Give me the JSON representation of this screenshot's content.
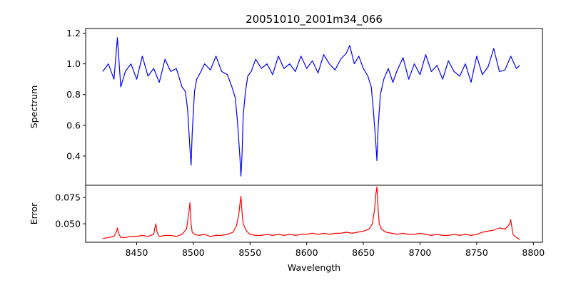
{
  "chart_data": [
    {
      "type": "line",
      "title": "20051010_2001m34_066",
      "xlabel": "",
      "ylabel": "Spectrum",
      "xlim": [
        8405,
        8808
      ],
      "ylim": [
        0.21,
        1.23
      ],
      "yticks": [
        0.4,
        0.6,
        0.8,
        1.0,
        1.2
      ],
      "ytick_labels": [
        "0.4",
        "0.6",
        "0.8",
        "1.0",
        "1.2"
      ],
      "grid": false,
      "color": "#0000ff",
      "series": [
        {
          "x": [
            8420,
            8425,
            8430,
            8433,
            8436,
            8440,
            8445,
            8450,
            8455,
            8460,
            8465,
            8470,
            8475,
            8480,
            8485,
            8490,
            8493,
            8495,
            8497,
            8498,
            8499,
            8501,
            8503,
            8506,
            8510,
            8515,
            8520,
            8525,
            8530,
            8534,
            8537,
            8539,
            8541,
            8542,
            8543,
            8544,
            8546,
            8548,
            8551,
            8555,
            8560,
            8565,
            8570,
            8575,
            8580,
            8585,
            8590,
            8595,
            8600,
            8605,
            8610,
            8615,
            8620,
            8625,
            8630,
            8635,
            8638,
            8642,
            8646,
            8650,
            8654,
            8657,
            8659,
            8661,
            8662,
            8663,
            8665,
            8668,
            8672,
            8676,
            8680,
            8685,
            8690,
            8695,
            8700,
            8705,
            8710,
            8715,
            8720,
            8725,
            8730,
            8735,
            8740,
            8745,
            8750,
            8755,
            8760,
            8765,
            8770,
            8775,
            8780,
            8785,
            8788
          ],
          "y": [
            0.95,
            1.0,
            0.9,
            1.17,
            0.85,
            0.95,
            1.0,
            0.9,
            1.05,
            0.92,
            0.97,
            0.88,
            1.03,
            0.95,
            0.97,
            0.85,
            0.82,
            0.7,
            0.45,
            0.34,
            0.55,
            0.82,
            0.9,
            0.94,
            1.0,
            0.96,
            1.05,
            0.95,
            0.93,
            0.85,
            0.78,
            0.62,
            0.4,
            0.27,
            0.42,
            0.66,
            0.82,
            0.92,
            0.95,
            1.03,
            0.97,
            1.0,
            0.93,
            1.05,
            0.97,
            1.0,
            0.95,
            1.05,
            0.97,
            1.02,
            0.94,
            1.06,
            1.0,
            0.96,
            1.03,
            1.07,
            1.12,
            1.0,
            1.05,
            0.97,
            0.92,
            0.85,
            0.68,
            0.48,
            0.37,
            0.58,
            0.8,
            0.9,
            0.97,
            0.88,
            0.96,
            1.04,
            0.9,
            1.0,
            0.93,
            1.06,
            0.95,
            0.99,
            0.9,
            1.02,
            0.95,
            0.92,
            1.0,
            0.88,
            1.05,
            0.93,
            0.98,
            1.1,
            0.95,
            0.96,
            1.05,
            0.97,
            0.99
          ]
        }
      ]
    },
    {
      "type": "line",
      "xlabel": "Wavelength",
      "ylabel": "Error",
      "xlim": [
        8405,
        8808
      ],
      "ylim": [
        0.0325,
        0.0865
      ],
      "xticks": [
        8450,
        8500,
        8550,
        8600,
        8650,
        8700,
        8750,
        8800
      ],
      "xtick_labels": [
        "8450",
        "8500",
        "8550",
        "8600",
        "8650",
        "8700",
        "8750",
        "8800"
      ],
      "yticks": [
        0.05,
        0.075
      ],
      "ytick_labels": [
        "0.050",
        "0.075"
      ],
      "grid": false,
      "color": "#ff0000",
      "series": [
        {
          "x": [
            8420,
            8425,
            8430,
            8432,
            8433,
            8434,
            8436,
            8440,
            8445,
            8450,
            8455,
            8460,
            8465,
            8466,
            8467,
            8468,
            8470,
            8475,
            8480,
            8485,
            8490,
            8494,
            8496,
            8497,
            8498,
            8499,
            8501,
            8505,
            8510,
            8515,
            8520,
            8525,
            8530,
            8535,
            8538,
            8540,
            8541,
            8542,
            8543,
            8544,
            8547,
            8550,
            8555,
            8560,
            8565,
            8570,
            8575,
            8580,
            8585,
            8590,
            8595,
            8600,
            8605,
            8610,
            8615,
            8620,
            8625,
            8630,
            8635,
            8640,
            8645,
            8650,
            8655,
            8658,
            8660,
            8661,
            8662,
            8663,
            8664,
            8666,
            8670,
            8675,
            8680,
            8685,
            8690,
            8695,
            8700,
            8705,
            8710,
            8715,
            8720,
            8725,
            8730,
            8735,
            8740,
            8745,
            8750,
            8755,
            8760,
            8765,
            8770,
            8775,
            8777,
            8779,
            8780,
            8782,
            8785,
            8788
          ],
          "y": [
            0.036,
            0.037,
            0.038,
            0.042,
            0.046,
            0.041,
            0.037,
            0.037,
            0.038,
            0.038,
            0.039,
            0.038,
            0.04,
            0.046,
            0.05,
            0.042,
            0.038,
            0.039,
            0.039,
            0.038,
            0.04,
            0.045,
            0.06,
            0.07,
            0.05,
            0.042,
            0.04,
            0.039,
            0.04,
            0.038,
            0.039,
            0.039,
            0.04,
            0.042,
            0.048,
            0.058,
            0.068,
            0.076,
            0.06,
            0.05,
            0.043,
            0.04,
            0.039,
            0.039,
            0.04,
            0.039,
            0.04,
            0.039,
            0.04,
            0.039,
            0.04,
            0.04,
            0.041,
            0.04,
            0.041,
            0.04,
            0.041,
            0.041,
            0.042,
            0.041,
            0.042,
            0.043,
            0.045,
            0.05,
            0.065,
            0.078,
            0.085,
            0.065,
            0.05,
            0.045,
            0.042,
            0.041,
            0.04,
            0.041,
            0.04,
            0.04,
            0.041,
            0.04,
            0.039,
            0.04,
            0.039,
            0.039,
            0.04,
            0.039,
            0.04,
            0.039,
            0.04,
            0.042,
            0.043,
            0.044,
            0.046,
            0.045,
            0.047,
            0.05,
            0.054,
            0.04,
            0.037,
            0.035
          ]
        }
      ]
    }
  ]
}
